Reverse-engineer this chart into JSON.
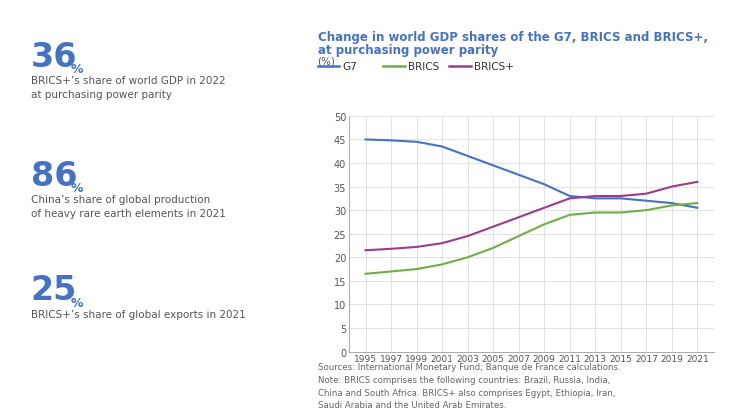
{
  "years": [
    1995,
    1997,
    1999,
    2001,
    2003,
    2005,
    2007,
    2009,
    2011,
    2013,
    2015,
    2017,
    2019,
    2021
  ],
  "g7": [
    45.0,
    44.8,
    44.5,
    43.5,
    41.5,
    39.5,
    37.5,
    35.5,
    33.0,
    32.5,
    32.5,
    32.0,
    31.5,
    30.5
  ],
  "brics": [
    16.5,
    17.0,
    17.5,
    18.5,
    20.0,
    22.0,
    24.5,
    27.0,
    29.0,
    29.5,
    29.5,
    30.0,
    31.0,
    31.5
  ],
  "brics_plus": [
    21.5,
    21.8,
    22.2,
    23.0,
    24.5,
    26.5,
    28.5,
    30.5,
    32.5,
    33.0,
    33.0,
    33.5,
    35.0,
    36.0
  ],
  "g7_color": "#4472c4",
  "brics_color": "#70ad47",
  "brics_plus_color": "#9e3a8c",
  "title_line1": "Change in world GDP shares of the G7, BRICS and BRICS+,",
  "title_line2": "at purchasing power parity",
  "ylabel": "(%)",
  "ylim": [
    0,
    50
  ],
  "yticks": [
    0,
    5,
    10,
    15,
    20,
    25,
    30,
    35,
    40,
    45,
    50
  ],
  "title_color": "#4472c4",
  "bg_color": "#ffffff",
  "stat1_number": "36",
  "stat1_unit": "%",
  "stat1_desc": "BRICS+’s share of world GDP in 2022\nat purchasing power parity",
  "stat2_number": "86",
  "stat2_unit": "%",
  "stat2_desc": "China’s share of global production\nof heavy rare earth elements in 2021",
  "stat3_number": "25",
  "stat3_unit": "%",
  "stat3_desc": "BRICS+’s share of global exports in 2021",
  "source_text": "Sources: International Monetary Fund; Banque de France calculations.\nNote: BRICS comprises the following countries: Brazil, Russia, India,\nChina and South Africa. BRICS+ also comprises Egypt, Ethiopia, Iran,\nSaudi Arabia and the United Arab Emirates.",
  "stat_color": "#4472c4",
  "stat_desc_color": "#555555",
  "axis_color": "#aaaaaa",
  "grid_color": "#dddddd",
  "tick_label_color": "#555555",
  "source_color": "#666666"
}
